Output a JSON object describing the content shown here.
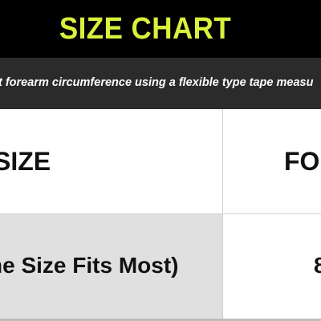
{
  "header": {
    "title": "SIZE CHART"
  },
  "instruction": {
    "text": "t forearm circumference using a flexible type tape measu"
  },
  "table": {
    "headers": [
      "SIZE",
      "FO"
    ],
    "rows": [
      [
        "ne Size Fits Most)",
        "8"
      ]
    ]
  },
  "colors": {
    "header_background": "#000000",
    "title_text": "#d9f03c",
    "instruction_background": "#2b2b2b",
    "instruction_text": "#ffffff",
    "data_row_shading": "#e0e0e0"
  }
}
